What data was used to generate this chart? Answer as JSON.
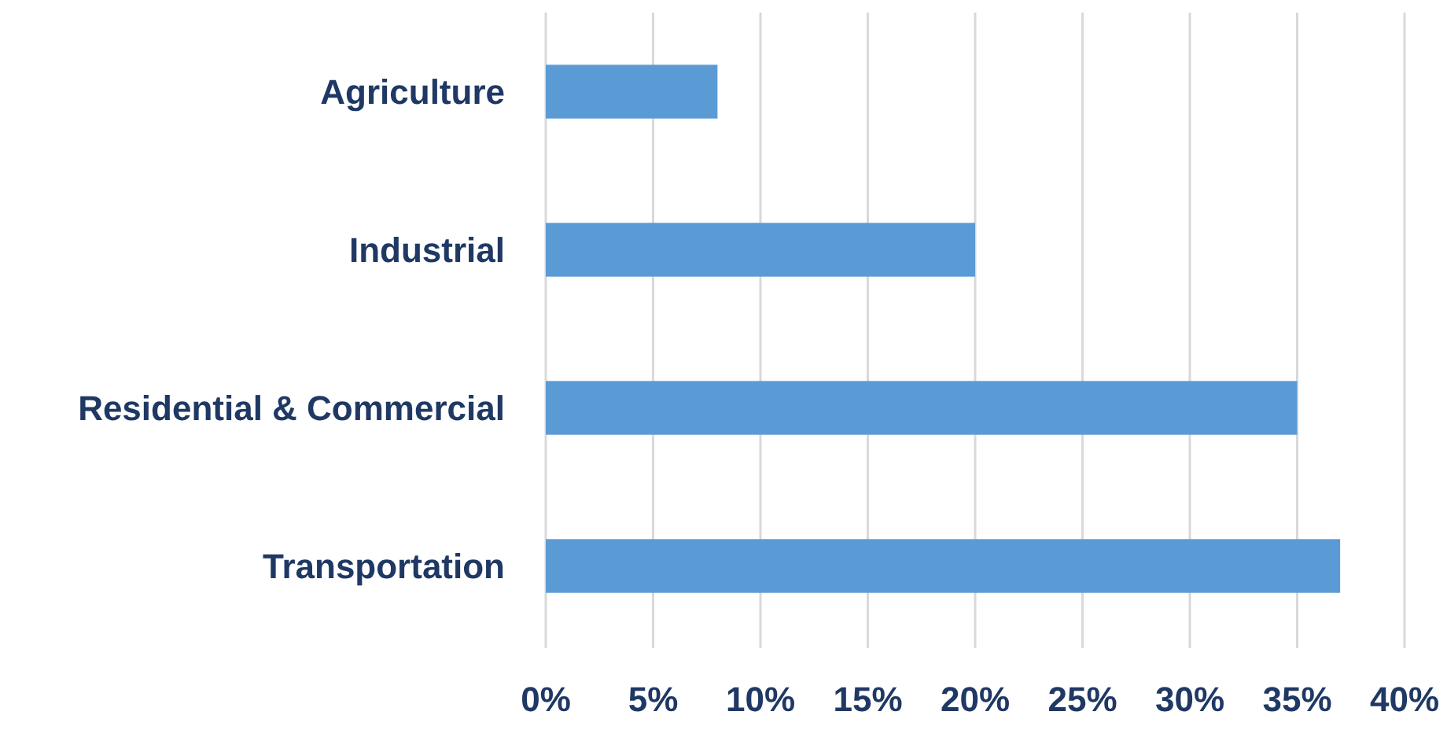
{
  "chart_data": {
    "type": "bar",
    "orientation": "horizontal",
    "categories": [
      "Agriculture",
      "Industrial",
      "Residential & Commercial",
      "Transportation"
    ],
    "values": [
      8,
      20,
      35,
      37
    ],
    "color": "#5b9bd5",
    "xlim": [
      0,
      40
    ],
    "xticks": [
      {
        "value": 0,
        "label": "0%"
      },
      {
        "value": 5,
        "label": "5%"
      },
      {
        "value": 10,
        "label": "10%"
      },
      {
        "value": 15,
        "label": "15%"
      },
      {
        "value": 20,
        "label": "20%"
      },
      {
        "value": 25,
        "label": "25%"
      },
      {
        "value": 30,
        "label": "30%"
      },
      {
        "value": 35,
        "label": "35%"
      },
      {
        "value": 40,
        "label": "40%"
      }
    ],
    "grid": "x"
  }
}
